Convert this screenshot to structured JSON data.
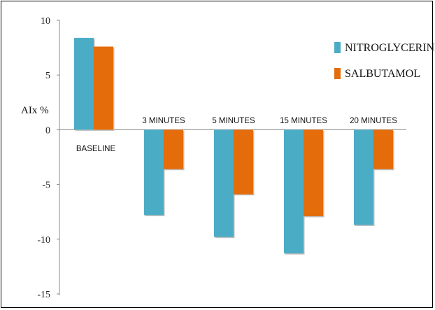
{
  "chart_data": {
    "type": "bar",
    "title": "",
    "xlabel": "",
    "ylabel": "AIx %",
    "ylim": [
      -15,
      10
    ],
    "yticks": [
      10,
      5,
      0,
      -5,
      -10,
      -15
    ],
    "categories": [
      "BASELINE",
      "3 MINUTES",
      "5 MINUTES",
      "15 MINUTES",
      "20 MINUTES"
    ],
    "series": [
      {
        "name": "NITROGLYCERINE",
        "color": "#4bacc6",
        "values": [
          8.4,
          -7.8,
          -9.8,
          -11.3,
          -8.7
        ]
      },
      {
        "name": "SALBUTAMOL",
        "color": "#e46c0a",
        "values": [
          7.6,
          -3.6,
          -5.9,
          -7.9,
          -3.6
        ]
      }
    ],
    "legend_position": "top-right",
    "grid": false
  }
}
